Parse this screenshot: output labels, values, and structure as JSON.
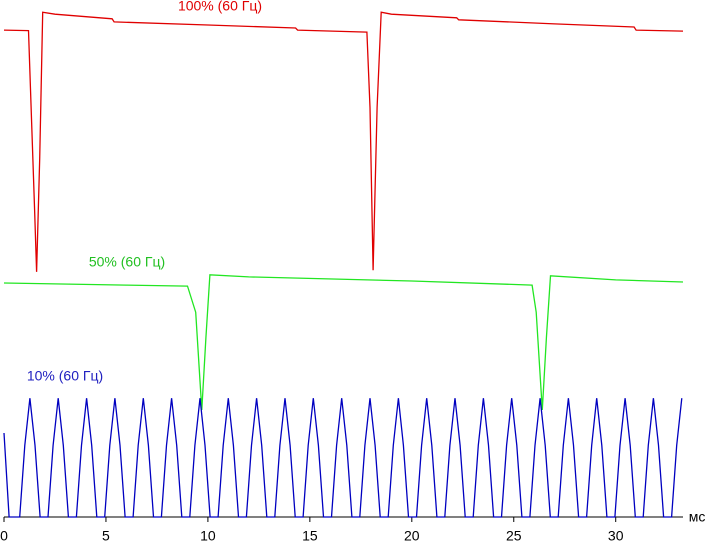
{
  "chart_data": {
    "type": "line",
    "x_label": "мс",
    "xlim": [
      0,
      33.3
    ],
    "xticks": [
      0,
      5,
      10,
      15,
      20,
      25,
      30
    ],
    "ylim": [
      0,
      100
    ],
    "series": [
      {
        "name": "100% (60 Гц)",
        "color": "#e00000",
        "x": [
          0,
          1.2,
          1.5,
          1.6,
          1.75,
          1.9,
          2.5,
          5.3,
          5.4,
          10,
          14.3,
          14.4,
          17.8,
          17.95,
          18.1,
          18.3,
          18.5,
          19,
          22.2,
          22.3,
          27,
          30.9,
          31,
          33.3
        ],
        "values": [
          95.1,
          95.0,
          60,
          47.9,
          70,
          98.6,
          98.2,
          97.3,
          96.7,
          96.1,
          95.5,
          95.1,
          94.7,
          80,
          48.2,
          80,
          98.6,
          98.2,
          97.5,
          97.1,
          96.3,
          95.7,
          95.1,
          94.9
        ]
      },
      {
        "name": "50% (60 Гц)",
        "color": "#22e622",
        "x": [
          0,
          6,
          9.0,
          9.4,
          9.7,
          9.9,
          10.1,
          12,
          20,
          25.9,
          26.1,
          26.4,
          26.6,
          26.8,
          30,
          33.3
        ],
        "values": [
          45.7,
          45.3,
          45.1,
          40,
          20.9,
          35,
          47.3,
          46.9,
          46.1,
          45.3,
          40,
          20.9,
          35,
          47.1,
          46.3,
          45.9
        ]
      },
      {
        "name": "10% (60 Гц)",
        "color": "#0000c0",
        "x": [
          0,
          0.25,
          0.77,
          1.02,
          1.27,
          1.52,
          1.77,
          2.16,
          2.41,
          2.66,
          2.91,
          3.16,
          3.55,
          3.8,
          4.05,
          4.3,
          4.55,
          4.94,
          5.19,
          5.44,
          5.69,
          5.94,
          6.33,
          6.58,
          6.83,
          7.08,
          7.33,
          7.72,
          7.97,
          8.22,
          8.47,
          8.72,
          9.11,
          9.36,
          9.61,
          9.86,
          10.11,
          10.5,
          10.75,
          11,
          11.25,
          11.5,
          11.89,
          12.14,
          12.39,
          12.64,
          12.89,
          13.28,
          13.53,
          13.78,
          14.03,
          14.28,
          14.67,
          14.92,
          15.17,
          15.42,
          15.67,
          16.06,
          16.31,
          16.56,
          16.81,
          17.06,
          17.45,
          17.7,
          17.95,
          18.2,
          18.45,
          18.84,
          19.09,
          19.34,
          19.59,
          19.84,
          20.23,
          20.48,
          20.73,
          20.98,
          21.23,
          21.62,
          21.87,
          22.12,
          22.37,
          22.62,
          23.01,
          23.26,
          23.51,
          23.76,
          24.01,
          24.4,
          24.65,
          24.9,
          25.15,
          25.4,
          25.79,
          26.04,
          26.29,
          26.54,
          26.79,
          27.18,
          27.43,
          27.68,
          27.93,
          28.18,
          28.57,
          28.82,
          29.07,
          29.32,
          29.57,
          29.96,
          30.21,
          30.46,
          30.71,
          30.96,
          31.35,
          31.6,
          31.85,
          32.1,
          32.35,
          32.74,
          32.99,
          33.24
        ],
        "values": [
          16.4,
          0,
          0,
          14,
          23.2,
          14,
          0,
          0,
          14,
          23.2,
          14,
          0,
          0,
          14,
          23.2,
          14,
          0,
          0,
          14,
          23.2,
          14,
          0,
          0,
          14,
          23.2,
          14,
          0,
          0,
          14,
          23.2,
          14,
          0,
          0,
          14,
          23.2,
          14,
          0,
          0,
          14,
          23.2,
          14,
          0,
          0,
          14,
          23.2,
          14,
          0,
          0,
          14,
          23.2,
          14,
          0,
          0,
          14,
          23.2,
          14,
          0,
          0,
          14,
          23.2,
          14,
          0,
          0,
          14,
          23.2,
          14,
          0,
          0,
          14,
          23.2,
          14,
          0,
          0,
          14,
          23.2,
          14,
          0,
          0,
          14,
          23.2,
          14,
          0,
          0,
          14,
          23.2,
          14,
          0,
          0,
          14,
          23.2,
          14,
          0,
          0,
          14,
          23.2,
          14,
          0,
          0,
          14,
          23.2,
          14,
          0,
          0,
          14,
          23.2,
          14,
          0,
          0,
          14,
          23.2,
          14,
          0,
          0,
          14,
          23.2,
          14,
          0,
          0,
          14,
          23.2
        ]
      }
    ]
  }
}
